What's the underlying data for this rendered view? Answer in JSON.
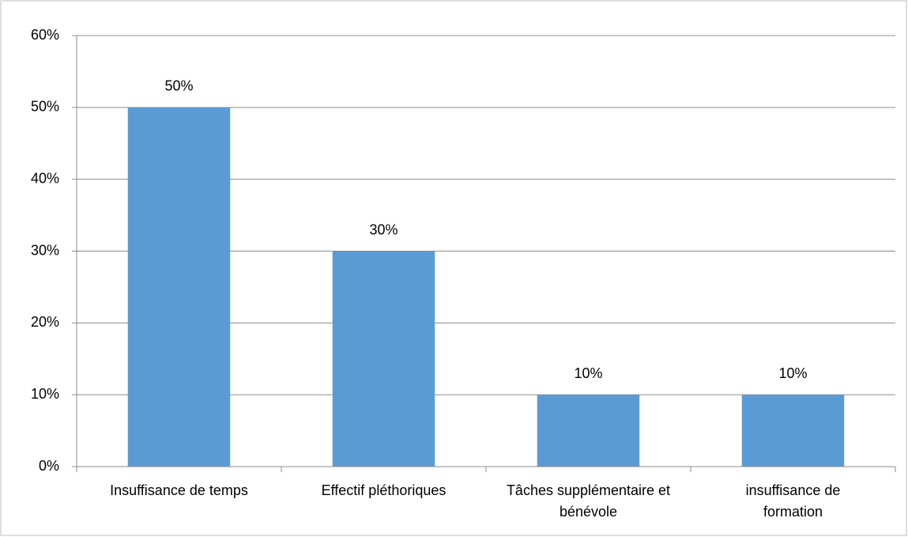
{
  "chart_data": {
    "type": "bar",
    "categories": [
      "Insuffisance de temps",
      "Effectif pléthoriques",
      "Tâches supplémentaire et bénévole",
      "insuffisance de formation"
    ],
    "values": [
      50,
      30,
      10,
      10
    ],
    "value_labels": [
      "50%",
      "30%",
      "10%",
      "10%"
    ],
    "color": "#5b9bd5",
    "ylim": [
      0,
      60
    ],
    "yticks": [
      {
        "value": 0,
        "label": "0%"
      },
      {
        "value": 10,
        "label": "10%"
      },
      {
        "value": 20,
        "label": "20%"
      },
      {
        "value": 30,
        "label": "30%"
      },
      {
        "value": 40,
        "label": "40%"
      },
      {
        "value": 50,
        "label": "50%"
      },
      {
        "value": 60,
        "label": "60%"
      }
    ],
    "grid": true
  }
}
